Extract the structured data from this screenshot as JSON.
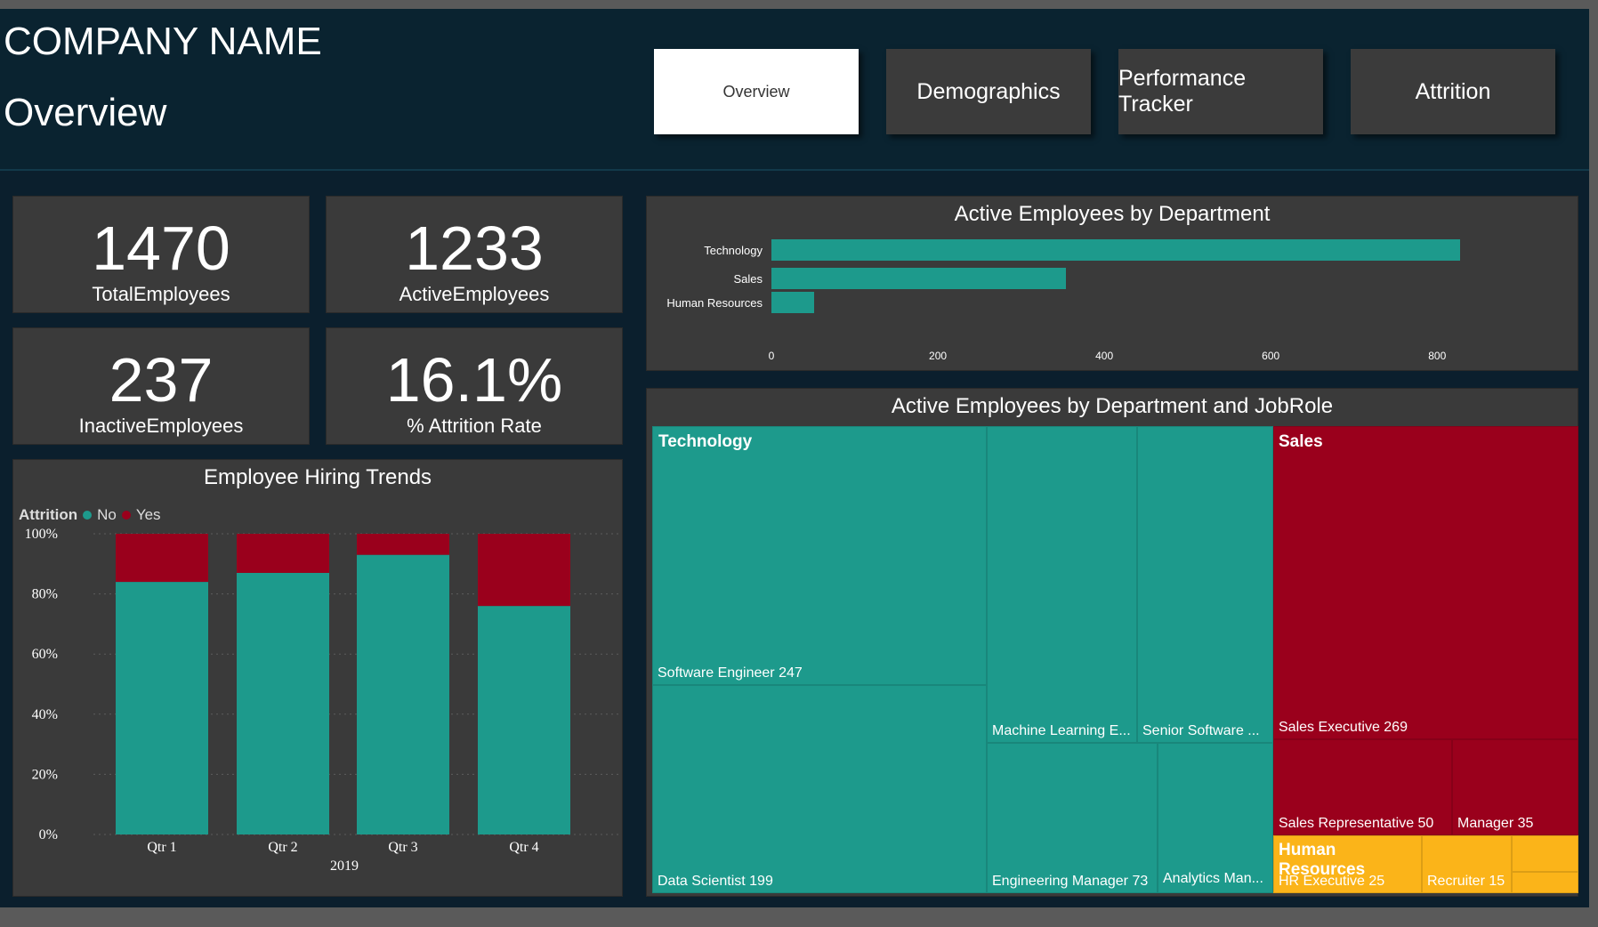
{
  "header": {
    "company": "COMPANY NAME",
    "page_title": "Overview"
  },
  "nav": [
    {
      "label": "Overview",
      "active": true
    },
    {
      "label": "Demographics",
      "active": false
    },
    {
      "label": "Performance Tracker",
      "active": false
    },
    {
      "label": "Attrition",
      "active": false
    }
  ],
  "kpis": {
    "total": {
      "value": "1470",
      "label": "TotalEmployees"
    },
    "active": {
      "value": "1233",
      "label": "ActiveEmployees"
    },
    "inactive": {
      "value": "237",
      "label": "InactiveEmployees"
    },
    "attrition": {
      "value": "16.1%",
      "label": "% Attrition Rate"
    }
  },
  "colors": {
    "teal": "#1d9a8c",
    "red": "#9a001c",
    "yellow": "#fbb419",
    "card": "#3a3a3a"
  },
  "dept_chart": {
    "title": "Active Employees by Department",
    "chart_data": {
      "type": "bar",
      "orientation": "horizontal",
      "categories": [
        "Technology",
        "Sales",
        "Human Resources"
      ],
      "values": [
        828,
        354,
        51
      ],
      "xlim": [
        0,
        850
      ],
      "xticks": [
        "0",
        "200",
        "400",
        "600",
        "800"
      ]
    }
  },
  "hiring_chart": {
    "title": "Employee Hiring Trends",
    "legend_title": "Attrition",
    "legend": [
      "No",
      "Yes"
    ],
    "xlabel_group": "2019",
    "chart_data": {
      "type": "bar",
      "stacked": "percent",
      "categories": [
        "Qtr 1",
        "Qtr 2",
        "Qtr 3",
        "Qtr 4"
      ],
      "series": [
        {
          "name": "No",
          "values": [
            84,
            87,
            93,
            76
          ]
        },
        {
          "name": "Yes",
          "values": [
            16,
            13,
            7,
            24
          ]
        }
      ],
      "yticks": [
        "0%",
        "20%",
        "40%",
        "60%",
        "80%",
        "100%"
      ],
      "ylim": [
        0,
        100
      ]
    }
  },
  "treemap": {
    "title": "Active Employees by Department and JobRole",
    "chart_data": {
      "type": "treemap",
      "departments": [
        {
          "name": "Technology",
          "roles": [
            {
              "name": "Software Engineer",
              "label": "Software Engineer 247",
              "value": 247
            },
            {
              "name": "Data Scientist",
              "label": "Data Scientist 199",
              "value": 199
            },
            {
              "name": "Machine Learning E...",
              "label": "Machine Learning E...",
              "value": null
            },
            {
              "name": "Senior Software ...",
              "label": "Senior Software ...",
              "value": null
            },
            {
              "name": "Engineering Manager",
              "label": "Engineering Manager 73",
              "value": 73
            },
            {
              "name": "Analytics Man...",
              "label": "Analytics Man...",
              "value": null
            }
          ]
        },
        {
          "name": "Sales",
          "roles": [
            {
              "name": "Sales Executive",
              "label": "Sales Executive 269",
              "value": 269
            },
            {
              "name": "Sales Representative",
              "label": "Sales Representative 50",
              "value": 50
            },
            {
              "name": "Manager",
              "label": "Manager 35",
              "value": 35
            }
          ]
        },
        {
          "name": "Human Resources",
          "roles": [
            {
              "name": "HR Executive",
              "label": "HR Executive 25",
              "value": 25
            },
            {
              "name": "Recruiter",
              "label": "Recruiter 15",
              "value": 15
            }
          ]
        }
      ]
    }
  }
}
